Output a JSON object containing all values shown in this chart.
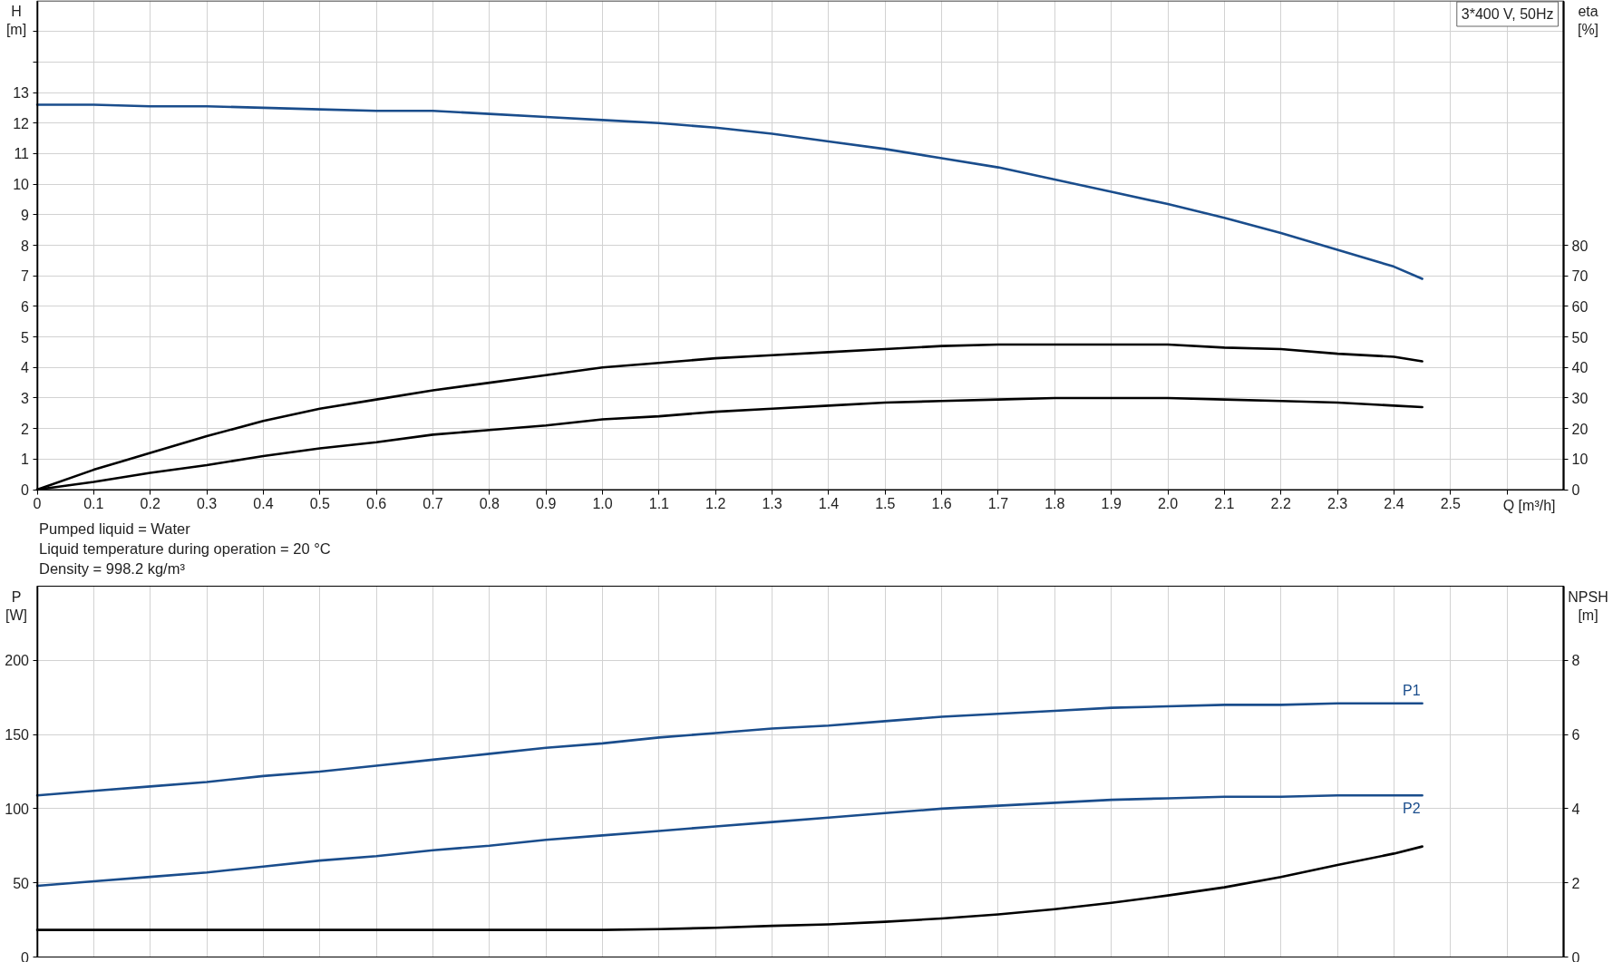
{
  "chart_data": [
    {
      "type": "line",
      "title": "3*400 V, 50Hz",
      "ylabel": "H [m]",
      "y2label": "eta [%]",
      "xlabel": "Q [m³/h]",
      "annotations": [
        "Pumped liquid = Water",
        "Liquid temperature during operation = 20 °C",
        "Density = 998.2 kg/m³"
      ],
      "x": [
        0,
        0.1,
        0.2,
        0.3,
        0.4,
        0.5,
        0.6,
        0.7,
        0.8,
        0.9,
        1.0,
        1.1,
        1.2,
        1.3,
        1.4,
        1.5,
        1.6,
        1.7,
        1.8,
        1.9,
        2.0,
        2.1,
        2.2,
        2.3,
        2.4,
        2.45
      ],
      "xlim": [
        0,
        2.7
      ],
      "xticks": [
        0,
        0.1,
        0.2,
        0.3,
        0.4,
        0.5,
        0.6,
        0.7,
        0.8,
        0.9,
        {
          "value": 1,
          "label": "1.0"
        },
        1.1,
        1.2,
        1.3,
        1.4,
        1.5,
        1.6,
        1.7,
        1.8,
        1.9,
        {
          "value": 2,
          "label": "2.0"
        },
        2.1,
        2.2,
        2.3,
        2.4,
        2.5,
        {
          "value": 2.6,
          "label": null
        }
      ],
      "ylim": [
        0,
        16
      ],
      "yticks": [
        0,
        1,
        2,
        3,
        4,
        5,
        6,
        7,
        8,
        9,
        10,
        11,
        12,
        13,
        {
          "value": 14,
          "label": null
        },
        {
          "value": 15,
          "label": null
        }
      ],
      "y2lim": [
        0,
        160
      ],
      "y2ticks": [
        0,
        10,
        20,
        30,
        40,
        50,
        60,
        70,
        80
      ],
      "grid": true,
      "series": [
        {
          "color": "#1a4d8c",
          "values": [
            12.6,
            12.6,
            12.55,
            12.55,
            12.5,
            12.45,
            12.4,
            12.4,
            12.3,
            12.2,
            12.1,
            12.0,
            11.85,
            11.65,
            11.4,
            11.15,
            10.85,
            10.55,
            10.15,
            9.75,
            9.35,
            8.9,
            8.4,
            7.85,
            7.3,
            6.9
          ]
        },
        {
          "color": "#000000",
          "axis": "y2",
          "values": [
            0,
            6.5,
            12,
            17.5,
            22.5,
            26.5,
            29.5,
            32.5,
            35,
            37.5,
            40,
            41.5,
            43,
            44,
            45,
            46,
            47,
            47.5,
            47.5,
            47.5,
            47.5,
            46.5,
            46,
            44.5,
            43.5,
            42
          ]
        },
        {
          "color": "#000000",
          "axis": "y2",
          "values": [
            0,
            2.5,
            5.5,
            8,
            11,
            13.5,
            15.5,
            18,
            19.5,
            21,
            23,
            24,
            25.5,
            26.5,
            27.5,
            28.5,
            29,
            29.5,
            30,
            30,
            30,
            29.5,
            29,
            28.5,
            27.5,
            27
          ]
        }
      ]
    },
    {
      "type": "line",
      "ylabel": "P [W]",
      "y2label": "NPSH [m]",
      "x": [
        0,
        0.1,
        0.2,
        0.3,
        0.4,
        0.5,
        0.6,
        0.7,
        0.8,
        0.9,
        1.0,
        1.1,
        1.2,
        1.3,
        1.4,
        1.5,
        1.6,
        1.7,
        1.8,
        1.9,
        2.0,
        2.1,
        2.2,
        2.3,
        2.4,
        2.45
      ],
      "xlim": [
        0,
        2.7
      ],
      "xticks": [
        0,
        0.1,
        0.2,
        0.3,
        0.4,
        0.5,
        0.6,
        0.7,
        0.8,
        0.9,
        1.0,
        1.1,
        1.2,
        1.3,
        1.4,
        1.5,
        1.6,
        1.7,
        1.8,
        1.9,
        2.0,
        2.1,
        2.2,
        2.3,
        2.4,
        2.5,
        2.6
      ],
      "ylim": [
        0,
        250
      ],
      "yticks": [
        0,
        50,
        100,
        150,
        200
      ],
      "y2lim": [
        0,
        10
      ],
      "y2ticks": [
        0,
        2,
        4,
        6,
        8
      ],
      "grid": true,
      "tick_labels": "y",
      "series": [
        {
          "name": "P1",
          "color": "#1a4d8c",
          "values": [
            109,
            112,
            115,
            118,
            122,
            125,
            129,
            133,
            137,
            141,
            144,
            148,
            151,
            154,
            156,
            159,
            162,
            164,
            166,
            168,
            169,
            170,
            170,
            171,
            171,
            171
          ]
        },
        {
          "name": "P2",
          "color": "#1a4d8c",
          "values": [
            48,
            51,
            54,
            57,
            61,
            65,
            68,
            72,
            75,
            79,
            82,
            85,
            88,
            91,
            94,
            97,
            100,
            102,
            104,
            106,
            107,
            108,
            108,
            109,
            109,
            109
          ]
        },
        {
          "color": "#000000",
          "axis": "y2",
          "values": [
            0.73,
            0.73,
            0.73,
            0.73,
            0.73,
            0.73,
            0.73,
            0.73,
            0.73,
            0.73,
            0.73,
            0.75,
            0.79,
            0.84,
            0.88,
            0.95,
            1.04,
            1.15,
            1.29,
            1.46,
            1.66,
            1.88,
            2.16,
            2.48,
            2.79,
            2.98
          ]
        }
      ]
    }
  ]
}
